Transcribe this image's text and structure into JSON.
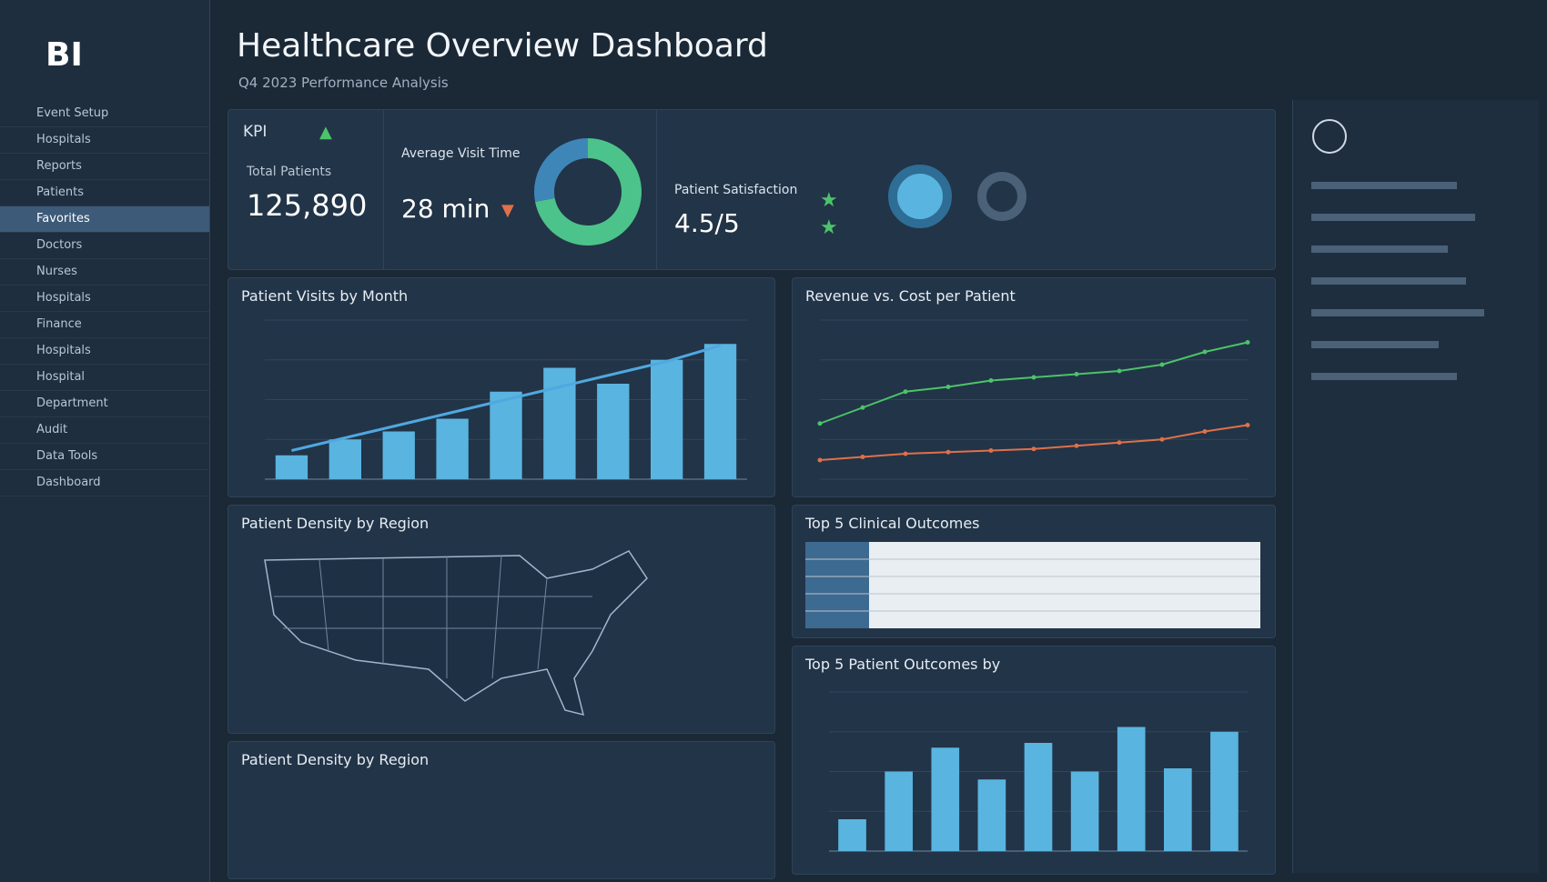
{
  "header": {
    "logo": "BI",
    "title": "Healthcare Overview Dashboard",
    "subtitle": "Q4 2023 Performance Analysis"
  },
  "sidebar": [
    "Event Setup",
    "Hospitals",
    "Reports",
    "Patients",
    "Favorites",
    "Doctors",
    "Nurses",
    "Hospitals",
    "Finance",
    "Hospitals",
    "Hospital",
    "Department",
    "Audit",
    "Data Tools",
    "Dashboard"
  ],
  "kpis": {
    "label": "KPI",
    "total_patients": {
      "label": "Total Patients",
      "value": "125,890"
    },
    "visit_time": {
      "label": "Average Visit Time",
      "value": "28 min"
    },
    "satisfaction": {
      "label": "Patient Satisfaction",
      "value": "4.5/5"
    }
  },
  "chart_data": [
    {
      "type": "pie",
      "values": [
        72,
        28
      ],
      "colors": [
        "#4cc38a",
        "#3f86b8"
      ]
    },
    {
      "type": "bar",
      "title": "Patient Visits by Month",
      "values": [
        15,
        25,
        30,
        38,
        55,
        70,
        60,
        75,
        85
      ],
      "color": "#5ab4e0",
      "ylim": [
        0,
        100
      ],
      "trend": {
        "values": [
          18,
          26,
          34,
          42,
          50,
          58,
          66,
          74,
          84
        ],
        "color": "#4fa8e0"
      }
    },
    {
      "type": "line",
      "title": "Revenue vs. Cost per Patient",
      "ylim": [
        0,
        100
      ],
      "series": [
        {
          "color": "#4cc36a",
          "values": [
            35,
            45,
            55,
            58,
            62,
            64,
            66,
            68,
            72,
            80,
            86
          ]
        },
        {
          "color": "#e0704a",
          "values": [
            12,
            14,
            16,
            17,
            18,
            19,
            21,
            23,
            25,
            30,
            34
          ]
        }
      ]
    },
    {
      "type": "bar",
      "title": "Top 5 Patient Outcomes by",
      "values": [
        20,
        50,
        65,
        45,
        68,
        50,
        78,
        52,
        75
      ],
      "color": "#5ab4e0",
      "ylim": [
        0,
        100
      ]
    }
  ],
  "table": {
    "title": "Top 5 Clinical Outcomes"
  },
  "maps": [
    "Patient Density by Region",
    "Patient Density by Region"
  ]
}
